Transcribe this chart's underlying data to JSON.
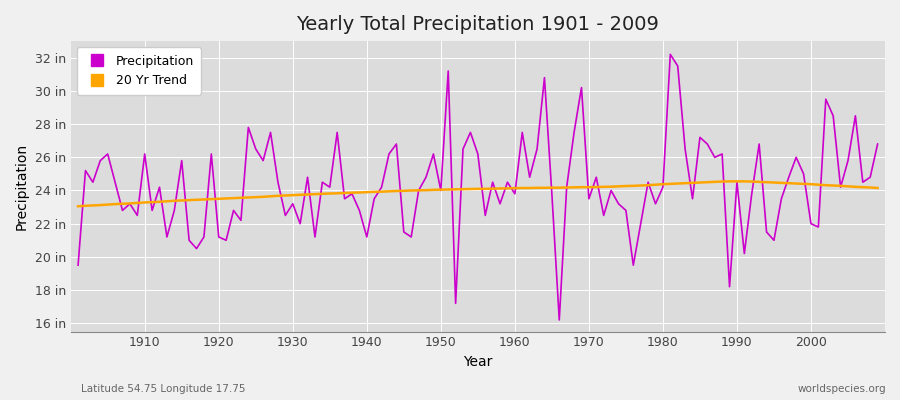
{
  "title": "Yearly Total Precipitation 1901 - 2009",
  "xlabel": "Year",
  "ylabel": "Precipitation",
  "subtitle_left": "Latitude 54.75 Longitude 17.75",
  "watermark": "worldspecies.org",
  "years": [
    1901,
    1902,
    1903,
    1904,
    1905,
    1906,
    1907,
    1908,
    1909,
    1910,
    1911,
    1912,
    1913,
    1914,
    1915,
    1916,
    1917,
    1918,
    1919,
    1920,
    1921,
    1922,
    1923,
    1924,
    1925,
    1926,
    1927,
    1928,
    1929,
    1930,
    1931,
    1932,
    1933,
    1934,
    1935,
    1936,
    1937,
    1938,
    1939,
    1940,
    1941,
    1942,
    1943,
    1944,
    1945,
    1946,
    1947,
    1948,
    1949,
    1950,
    1951,
    1952,
    1953,
    1954,
    1955,
    1956,
    1957,
    1958,
    1959,
    1960,
    1961,
    1962,
    1963,
    1964,
    1965,
    1966,
    1967,
    1968,
    1969,
    1970,
    1971,
    1972,
    1973,
    1974,
    1975,
    1976,
    1977,
    1978,
    1979,
    1980,
    1981,
    1982,
    1983,
    1984,
    1985,
    1986,
    1987,
    1988,
    1989,
    1990,
    1991,
    1992,
    1993,
    1994,
    1995,
    1996,
    1997,
    1998,
    1999,
    2000,
    2001,
    2002,
    2003,
    2004,
    2005,
    2006,
    2007,
    2008,
    2009
  ],
  "precip": [
    19.5,
    25.2,
    24.5,
    25.8,
    26.2,
    24.5,
    22.8,
    23.2,
    22.5,
    26.2,
    22.8,
    24.2,
    21.2,
    22.8,
    25.8,
    21.0,
    20.5,
    21.2,
    26.2,
    21.2,
    21.0,
    22.8,
    22.2,
    27.8,
    26.5,
    25.8,
    27.5,
    24.5,
    22.5,
    23.2,
    22.0,
    24.8,
    21.2,
    24.5,
    24.2,
    27.5,
    23.5,
    23.8,
    22.8,
    21.2,
    23.5,
    24.2,
    26.2,
    26.8,
    21.5,
    21.2,
    24.0,
    24.8,
    26.2,
    24.0,
    31.2,
    17.2,
    26.5,
    27.5,
    26.2,
    22.5,
    24.5,
    23.2,
    24.5,
    23.8,
    27.5,
    24.8,
    26.5,
    30.8,
    23.8,
    16.2,
    24.2,
    27.5,
    30.2,
    23.5,
    24.8,
    22.5,
    24.0,
    23.2,
    22.8,
    19.5,
    22.0,
    24.5,
    23.2,
    24.2,
    32.2,
    31.5,
    26.5,
    23.5,
    27.2,
    26.8,
    26.0,
    26.2,
    18.2,
    24.5,
    20.2,
    23.8,
    26.8,
    21.5,
    21.0,
    23.5,
    24.8,
    26.0,
    25.0,
    22.0,
    21.8,
    29.5,
    28.5,
    24.2,
    25.8,
    28.5,
    24.5,
    24.8,
    26.8
  ],
  "trend": [
    23.05,
    23.08,
    23.1,
    23.12,
    23.15,
    23.18,
    23.2,
    23.22,
    23.25,
    23.28,
    23.3,
    23.32,
    23.35,
    23.38,
    23.4,
    23.42,
    23.44,
    23.46,
    23.48,
    23.5,
    23.52,
    23.54,
    23.56,
    23.58,
    23.6,
    23.62,
    23.65,
    23.68,
    23.7,
    23.72,
    23.74,
    23.76,
    23.78,
    23.8,
    23.82,
    23.83,
    23.85,
    23.87,
    23.88,
    23.9,
    23.92,
    23.93,
    23.95,
    23.97,
    23.98,
    24.0,
    24.01,
    24.02,
    24.04,
    24.05,
    24.06,
    24.07,
    24.08,
    24.09,
    24.1,
    24.1,
    24.11,
    24.12,
    24.13,
    24.14,
    24.15,
    24.15,
    24.16,
    24.16,
    24.17,
    24.17,
    24.18,
    24.19,
    24.2,
    24.2,
    24.21,
    24.22,
    24.23,
    24.25,
    24.27,
    24.28,
    24.3,
    24.32,
    24.35,
    24.38,
    24.4,
    24.42,
    24.44,
    24.46,
    24.48,
    24.5,
    24.52,
    24.54,
    24.55,
    24.55,
    24.55,
    24.54,
    24.52,
    24.5,
    24.48,
    24.46,
    24.44,
    24.42,
    24.4,
    24.38,
    24.35,
    24.32,
    24.3,
    24.28,
    24.25,
    24.22,
    24.2,
    24.18,
    24.15
  ],
  "precip_color": "#CC00CC",
  "trend_color": "#FFA500",
  "bg_color": "#F0F0F0",
  "plot_bg_color": "#DCDCDC",
  "grid_color": "#FFFFFF",
  "yticks": [
    16,
    18,
    20,
    22,
    24,
    26,
    28,
    30,
    32
  ],
  "ytick_labels": [
    "16 in",
    "18 in",
    "20 in",
    "22 in",
    "24 in",
    "26 in",
    "28 in",
    "30 in",
    "32 in"
  ],
  "xticks": [
    1910,
    1920,
    1930,
    1940,
    1950,
    1960,
    1970,
    1980,
    1990,
    2000
  ],
  "ylim": [
    15.5,
    33.0
  ],
  "xlim": [
    1900,
    2010
  ],
  "title_fontsize": 14,
  "tick_fontsize": 9,
  "label_fontsize": 10,
  "legend_fontsize": 9
}
